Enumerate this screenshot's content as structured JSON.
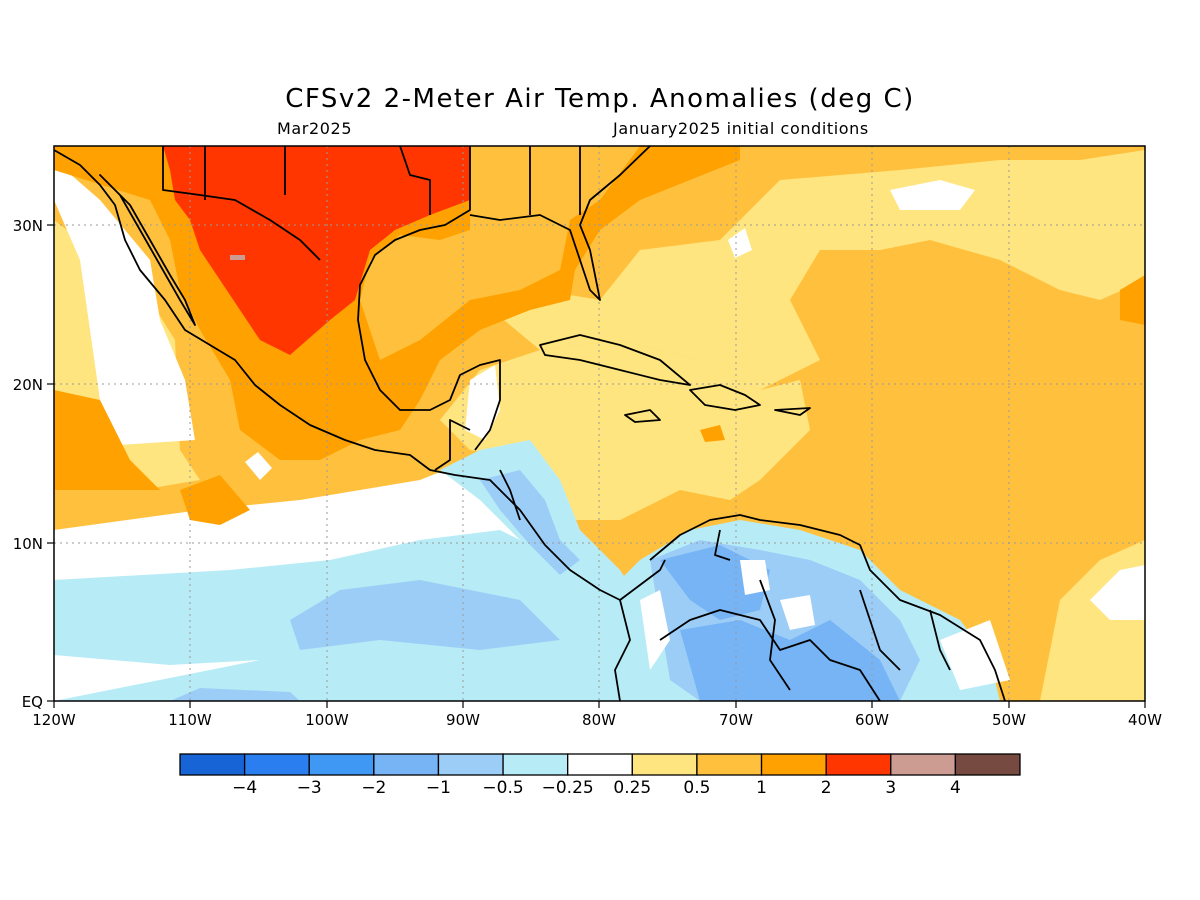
{
  "title": "CFSv2 2-Meter Air Temp. Anomalies (deg C)",
  "valid_month": "Mar2025",
  "init_conditions": "January2025 initial conditions",
  "map": {
    "lon_range": [
      -120,
      -40
    ],
    "lat_range": [
      0,
      35
    ],
    "lon_ticks": [
      "120W",
      "110W",
      "100W",
      "90W",
      "80W",
      "70W",
      "60W",
      "50W",
      "40W"
    ],
    "lat_ticks": [
      "EQ",
      "10N",
      "20N",
      "30N"
    ],
    "gridlines": "dotted"
  },
  "colorbar": {
    "colors": [
      "#1764d6",
      "#2a7ef0",
      "#4098f5",
      "#76b4f5",
      "#9ccdf7",
      "#b7ecf7",
      "#ffffff",
      "#ffe57f",
      "#ffc13d",
      "#ffa100",
      "#ff3600",
      "#cc9c93",
      "#774a41"
    ],
    "labels": [
      "−4",
      "−3",
      "−2",
      "−1",
      "−0.5",
      "−0.25",
      "0.25",
      "0.5",
      "1",
      "2",
      "3",
      "4"
    ]
  },
  "palette": {
    "neg_0_5": "#9ccdf7",
    "neg_1": "#76b4f5",
    "neg_0_25": "#b7ecf7",
    "pos_0_25": "#ffe57f",
    "pos_0_5": "#ffc13d",
    "pos_1": "#ffa100",
    "pos_2": "#ff3600"
  }
}
